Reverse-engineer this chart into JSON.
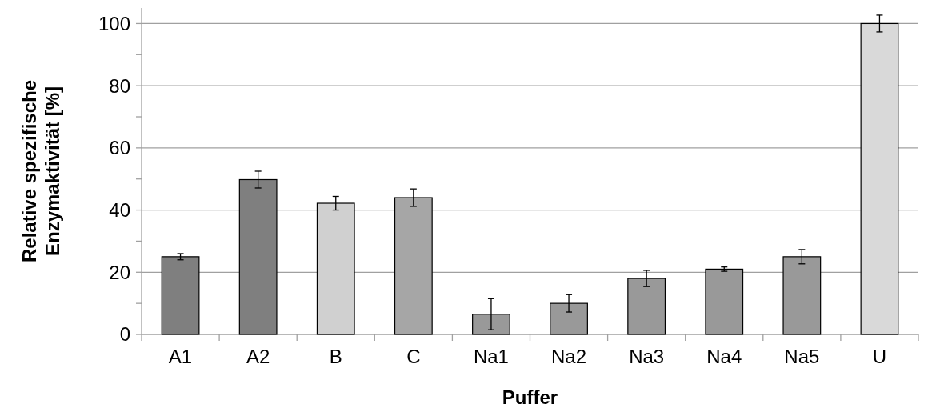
{
  "chart_data": {
    "type": "bar",
    "xlabel": "Puffer",
    "ylabel": "Relative spezifische\nEnzymaktivität [%]",
    "categories": [
      "A1",
      "A2",
      "B",
      "C",
      "Na1",
      "Na2",
      "Na3",
      "Na4",
      "Na5",
      "U"
    ],
    "values": [
      25,
      49.8,
      42.2,
      44,
      6.5,
      10,
      18,
      21,
      25,
      100
    ],
    "errors": [
      1,
      2.7,
      2.2,
      2.8,
      5,
      2.8,
      2.6,
      0.7,
      2.3,
      2.7
    ],
    "colors": [
      "#7f7f7f",
      "#7f7f7f",
      "#d0d0d0",
      "#a6a6a6",
      "#999999",
      "#999999",
      "#999999",
      "#999999",
      "#999999",
      "#d9d9d9"
    ],
    "ylim": [
      0,
      105
    ],
    "yticks": [
      0,
      {
        "value": 10,
        "label": null
      },
      20,
      {
        "value": 30,
        "label": null
      },
      40,
      {
        "value": 50,
        "label": null
      },
      60,
      {
        "value": 70,
        "label": null
      },
      80,
      {
        "value": 90,
        "label": null
      },
      100
    ],
    "grid": "y"
  }
}
